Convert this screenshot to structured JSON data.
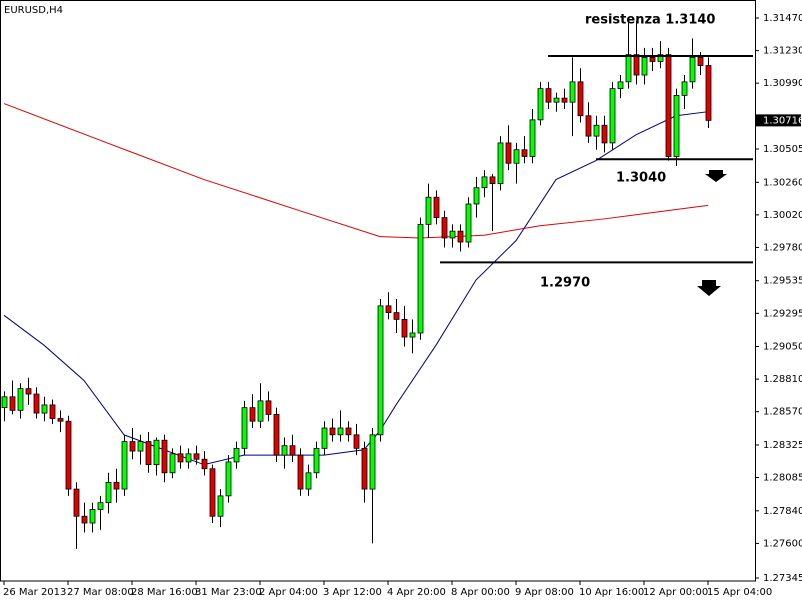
{
  "chart_data": {
    "type": "candlestick",
    "title": "EURUSD,H4",
    "categories": [
      "26 Mar 2013",
      null,
      null,
      null,
      null,
      null,
      null,
      null,
      "27 Mar 08:00",
      null,
      null,
      null,
      null,
      null,
      null,
      null,
      "28 Mar 16:00",
      null,
      null,
      null,
      null,
      null,
      null,
      null,
      "31 Mar 23:00",
      null,
      null,
      null,
      null,
      null,
      null,
      null,
      "2 Apr 04:00",
      null,
      null,
      null,
      null,
      null,
      null,
      null,
      "3 Apr 12:00",
      null,
      null,
      null,
      null,
      null,
      null,
      null,
      "4 Apr 20:00",
      null,
      null,
      null,
      null,
      null,
      null,
      null,
      "8 Apr 00:00",
      null,
      null,
      null,
      null,
      null,
      null,
      null,
      "9 Apr 08:00",
      null,
      null,
      null,
      null,
      null,
      null,
      null,
      "10 Apr 16:00",
      null,
      null,
      null,
      null,
      null,
      null,
      null,
      "12 Apr 00:00",
      null,
      null,
      null,
      null,
      null,
      null,
      null,
      "15 Apr 04:00"
    ],
    "open": [
      1.286,
      1.2868,
      1.2858,
      1.2874,
      1.287,
      1.2856,
      1.2862,
      1.2852,
      1.285,
      1.28,
      1.278,
      1.2775,
      1.2785,
      1.279,
      1.2805,
      1.28,
      1.2835,
      1.2828,
      1.2835,
      1.2818,
      1.2836,
      1.2812,
      1.2826,
      1.282,
      1.2826,
      1.2822,
      1.2815,
      1.278,
      1.2795,
      1.282,
      1.283,
      1.286,
      1.285,
      1.2865,
      1.2855,
      1.2825,
      1.2832,
      1.2825,
      1.28,
      1.2812,
      1.283,
      1.2845,
      1.284,
      1.2845,
      1.284,
      1.283,
      1.28,
      1.284,
      1.2935,
      1.293,
      1.2925,
      1.2912,
      1.2915,
      1.2995,
      1.3015,
      1.3,
      1.2985,
      1.299,
      1.2982,
      1.301,
      1.3022,
      1.303,
      1.3025,
      1.3055,
      1.304,
      1.305,
      1.3045,
      1.3072,
      1.3095,
      1.3085,
      1.3088,
      1.3085,
      1.31,
      1.3075,
      1.306,
      1.3068,
      1.3055,
      1.3095,
      1.31,
      1.312,
      1.3105,
      1.3118,
      1.3115,
      1.312,
      1.3045,
      1.309,
      1.31,
      1.3118,
      1.3112
    ],
    "high": [
      1.2872,
      1.288,
      1.2878,
      1.2882,
      1.2875,
      1.2868,
      1.2866,
      1.2858,
      1.2854,
      1.2805,
      1.279,
      1.279,
      1.2795,
      1.2812,
      1.2815,
      1.284,
      1.2845,
      1.284,
      1.2842,
      1.2838,
      1.284,
      1.283,
      1.2832,
      1.283,
      1.2832,
      1.2828,
      1.2818,
      1.28,
      1.2825,
      1.2835,
      1.2865,
      1.287,
      1.2878,
      1.2872,
      1.286,
      1.2838,
      1.284,
      1.283,
      1.2818,
      1.2835,
      1.285,
      1.2852,
      1.2858,
      1.285,
      1.2848,
      1.2835,
      1.2845,
      1.294,
      1.2945,
      1.294,
      1.2935,
      1.2925,
      1.3,
      1.3025,
      1.302,
      1.3005,
      1.2995,
      1.2995,
      1.3015,
      1.303,
      1.3035,
      1.3032,
      1.306,
      1.3068,
      1.3055,
      1.306,
      1.308,
      1.31,
      1.31,
      1.3092,
      1.3095,
      1.3118,
      1.311,
      1.3085,
      1.3075,
      1.3075,
      1.31,
      1.3105,
      1.3145,
      1.3145,
      1.3125,
      1.3125,
      1.313,
      1.3125,
      1.3095,
      1.3105,
      1.3132,
      1.3122,
      1.3118
    ],
    "low": [
      1.285,
      1.2855,
      1.2852,
      1.2862,
      1.2852,
      1.285,
      1.2848,
      1.2842,
      1.2795,
      1.2756,
      1.2768,
      1.2768,
      1.277,
      1.2782,
      1.279,
      1.2795,
      1.2822,
      1.2818,
      1.2812,
      1.281,
      1.2805,
      1.2808,
      1.2815,
      1.2815,
      1.2818,
      1.281,
      1.2775,
      1.2772,
      1.279,
      1.2815,
      1.2825,
      1.2845,
      1.2845,
      1.285,
      1.282,
      1.2815,
      1.282,
      1.2795,
      1.2795,
      1.2808,
      1.2825,
      1.2835,
      1.2835,
      1.2835,
      1.2825,
      1.279,
      1.276,
      1.2835,
      1.2925,
      1.2915,
      1.2905,
      1.29,
      1.291,
      1.2985,
      1.2995,
      1.2978,
      1.2978,
      1.2975,
      1.2978,
      1.3,
      1.3015,
      1.299,
      1.302,
      1.3035,
      1.3025,
      1.304,
      1.304,
      1.3068,
      1.308,
      1.3078,
      1.308,
      1.306,
      1.307,
      1.3055,
      1.305,
      1.3048,
      1.305,
      1.3088,
      1.3095,
      1.3098,
      1.3098,
      1.3108,
      1.311,
      1.3042,
      1.3038,
      1.308,
      1.3095,
      1.3105,
      1.3066
    ],
    "close": [
      1.2868,
      1.2858,
      1.2874,
      1.287,
      1.2856,
      1.2862,
      1.2852,
      1.285,
      1.28,
      1.278,
      1.2775,
      1.2785,
      1.279,
      1.2805,
      1.28,
      1.2835,
      1.2828,
      1.2835,
      1.2818,
      1.2836,
      1.2812,
      1.2826,
      1.282,
      1.2826,
      1.2822,
      1.2815,
      1.278,
      1.2795,
      1.282,
      1.283,
      1.286,
      1.285,
      1.2865,
      1.2855,
      1.2825,
      1.2832,
      1.2825,
      1.28,
      1.2812,
      1.283,
      1.2845,
      1.284,
      1.2845,
      1.284,
      1.283,
      1.28,
      1.284,
      1.2935,
      1.293,
      1.2925,
      1.2912,
      1.2915,
      1.2995,
      1.3015,
      1.3,
      1.2985,
      1.299,
      1.2982,
      1.301,
      1.3022,
      1.303,
      1.3025,
      1.3055,
      1.304,
      1.305,
      1.3045,
      1.3072,
      1.3095,
      1.3085,
      1.3088,
      1.3085,
      1.31,
      1.3075,
      1.306,
      1.3068,
      1.3055,
      1.3095,
      1.31,
      1.312,
      1.3105,
      1.3118,
      1.3115,
      1.312,
      1.3045,
      1.309,
      1.31,
      1.3118,
      1.3112,
      1.30716
    ],
    "up_color": "#00ff00",
    "down_color": "#e00000",
    "moving_averages": [
      {
        "color": "#e00000",
        "x": [
          0,
          12,
          25,
          37,
          47,
          52,
          60,
          67,
          75,
          88
        ],
        "values": [
          1.3084,
          1.3057,
          1.3028,
          1.3005,
          1.2986,
          1.2985,
          1.2987,
          1.2994,
          1.2999,
          1.3009
        ]
      },
      {
        "color": "#000080",
        "x": [
          0,
          5,
          10,
          15,
          20,
          25,
          30,
          35,
          40,
          45,
          47,
          49,
          54,
          59,
          64,
          69,
          74,
          79,
          84,
          88
        ],
        "values": [
          1.2928,
          1.2906,
          1.288,
          1.284,
          1.2829,
          1.2818,
          1.2825,
          1.2825,
          1.2825,
          1.2829,
          1.2843,
          1.2862,
          1.2906,
          1.2954,
          1.2983,
          1.3028,
          1.3042,
          1.3061,
          1.3075,
          1.3078
        ]
      }
    ],
    "levels": [
      {
        "value": 1.3119,
        "x_start": 68
      },
      {
        "value": 1.3043,
        "x_start": 74
      },
      {
        "value": 1.2967,
        "x_start": 54.5
      }
    ],
    "annotations": [
      "resistenza 1.3140",
      "1.3040",
      "1.2970"
    ],
    "current_price": 1.30716,
    "ylim": [
      1.27323,
      1.31588
    ],
    "yticks": [
      {
        "value": 1.3147,
        "label": "1.31470"
      },
      {
        "value": 1.3123,
        "label": "1.31230"
      },
      {
        "value": 1.3099,
        "label": "1.30990"
      },
      {
        "value": 1.30505,
        "label": "1.30505"
      },
      {
        "value": 1.3026,
        "label": "1.30260"
      },
      {
        "value": 1.3002,
        "label": "1.30020"
      },
      {
        "value": 1.2978,
        "label": "1.29780"
      },
      {
        "value": 1.29535,
        "label": "1.29535"
      },
      {
        "value": 1.29295,
        "label": "1.29295"
      },
      {
        "value": 1.2905,
        "label": "1.29050"
      },
      {
        "value": 1.2881,
        "label": "1.28810"
      },
      {
        "value": 1.2857,
        "label": "1.28570"
      },
      {
        "value": 1.28325,
        "label": "1.28325"
      },
      {
        "value": 1.28085,
        "label": "1.28085"
      },
      {
        "value": 1.2784,
        "label": "1.27840"
      },
      {
        "value": 1.276,
        "label": "1.27600"
      },
      {
        "value": 1.27345,
        "label": "1.27345"
      }
    ],
    "grid": false
  }
}
